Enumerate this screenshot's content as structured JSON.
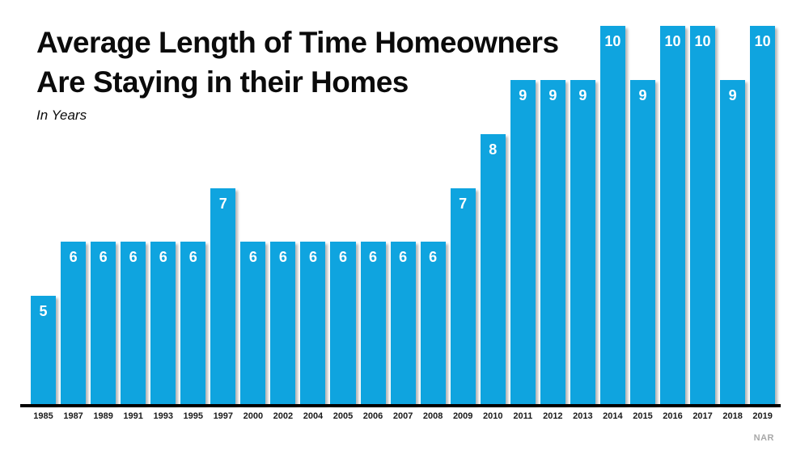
{
  "header": {
    "title_lines": [
      "Average Length of Time Homeowners",
      "Are Staying in their Homes"
    ],
    "subtitle": "In Years"
  },
  "source": {
    "label": "NAR"
  },
  "colors": {
    "bar": "#0FA4DF",
    "axis": "#000000",
    "value_label": "#ffffff",
    "source_label": "#a8a8a8"
  },
  "chart_data": {
    "type": "bar",
    "title": "Average Length of Time Homeowners Are Staying in their Homes",
    "subtitle": "In Years",
    "categories": [
      "1985",
      "1987",
      "1989",
      "1991",
      "1993",
      "1995",
      "1997",
      "2000",
      "2002",
      "2004",
      "2005",
      "2006",
      "2007",
      "2008",
      "2009",
      "2010",
      "2011",
      "2012",
      "2013",
      "2014",
      "2015",
      "2016",
      "2017",
      "2018",
      "2019"
    ],
    "values": [
      5,
      6,
      6,
      6,
      6,
      6,
      7,
      6,
      6,
      6,
      6,
      6,
      6,
      6,
      7,
      8,
      9,
      9,
      9,
      10,
      9,
      10,
      10,
      9,
      10
    ],
    "xlabel": "",
    "ylabel": "",
    "ylim": [
      3,
      10
    ],
    "grid": false,
    "legend": "none",
    "data_labels": "inside-top",
    "bar_color": "#0FA4DF",
    "source": "NAR"
  }
}
